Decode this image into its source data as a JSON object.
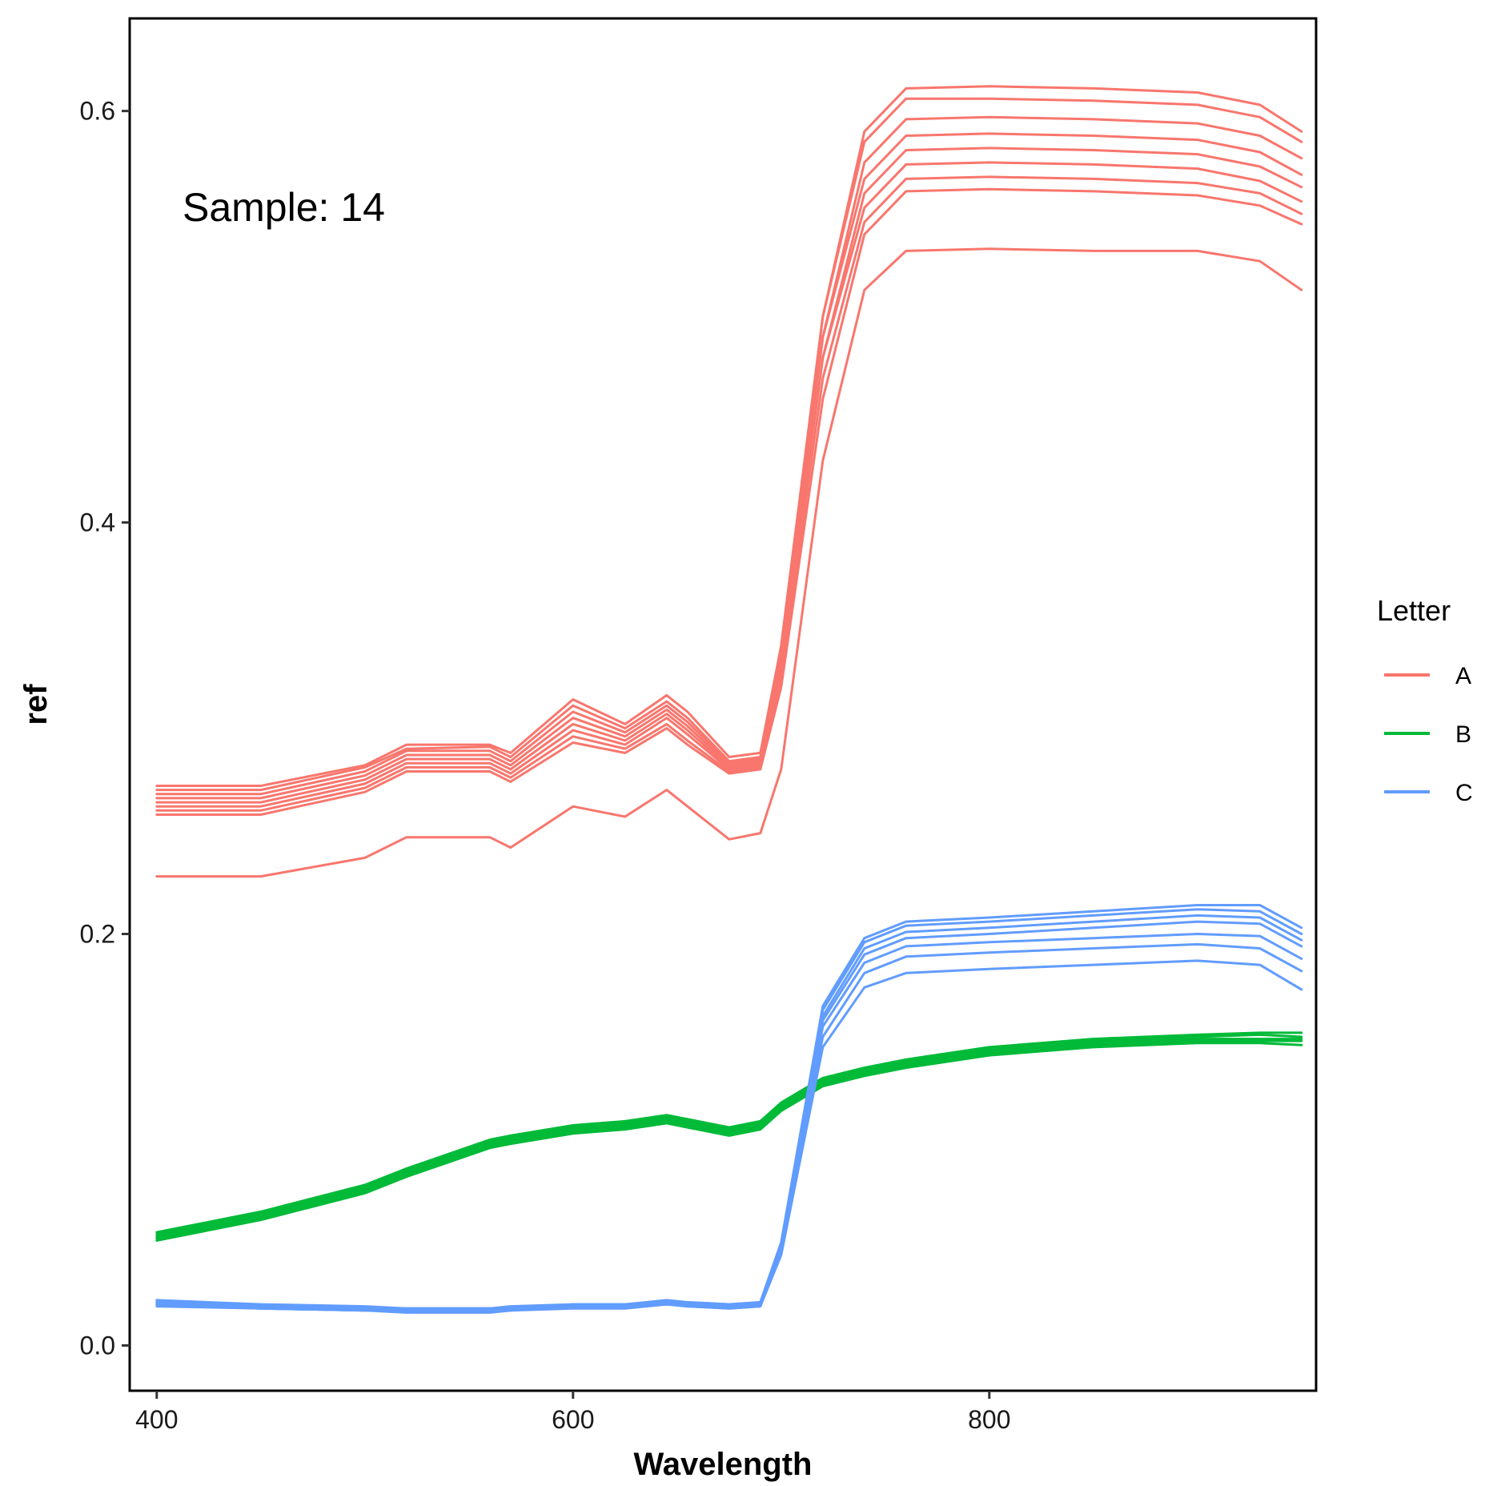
{
  "chart_data": {
    "type": "line",
    "xlabel": "Wavelength",
    "ylabel": "ref",
    "annotation": "Sample: 14",
    "xlim": [
      387,
      957
    ],
    "ylim": [
      -0.022,
      0.645
    ],
    "x_ticks": [
      400,
      600,
      800
    ],
    "x_tick_labels": [
      "400",
      "600",
      "800"
    ],
    "y_ticks": [
      0.0,
      0.2,
      0.4,
      0.6
    ],
    "y_tick_labels": [
      "0.0",
      "0.2",
      "0.4",
      "0.6"
    ],
    "grid": false,
    "legend": {
      "title": "Letter",
      "position": "right",
      "entries": [
        {
          "label": "A",
          "color": "#F8766D"
        },
        {
          "label": "B",
          "color": "#00BA38"
        },
        {
          "label": "C",
          "color": "#619CFF"
        }
      ]
    },
    "x": [
      400,
      450,
      500,
      520,
      560,
      570,
      600,
      625,
      645,
      655,
      675,
      690,
      700,
      720,
      740,
      760,
      800,
      850,
      900,
      930,
      950
    ],
    "series": [
      {
        "name": "A",
        "group": "A",
        "values": [
          0.272,
          0.272,
          0.282,
          0.292,
          0.292,
          0.288,
          0.314,
          0.302,
          0.316,
          0.308,
          0.286,
          0.288,
          0.34,
          0.5,
          0.59,
          0.611,
          0.612,
          0.611,
          0.609,
          0.603,
          0.59
        ]
      },
      {
        "name": "A",
        "group": "A",
        "values": [
          0.27,
          0.27,
          0.281,
          0.29,
          0.291,
          0.286,
          0.311,
          0.3,
          0.313,
          0.305,
          0.284,
          0.286,
          0.34,
          0.5,
          0.585,
          0.606,
          0.606,
          0.605,
          0.603,
          0.597,
          0.585
        ]
      },
      {
        "name": "A",
        "group": "A",
        "values": [
          0.268,
          0.268,
          0.279,
          0.289,
          0.289,
          0.284,
          0.308,
          0.298,
          0.311,
          0.303,
          0.283,
          0.285,
          0.335,
          0.49,
          0.575,
          0.596,
          0.597,
          0.596,
          0.594,
          0.588,
          0.577
        ]
      },
      {
        "name": "A",
        "group": "A",
        "values": [
          0.266,
          0.266,
          0.277,
          0.287,
          0.287,
          0.282,
          0.305,
          0.296,
          0.309,
          0.301,
          0.282,
          0.284,
          0.335,
          0.49,
          0.567,
          0.588,
          0.589,
          0.588,
          0.586,
          0.58,
          0.569
        ]
      },
      {
        "name": "A",
        "group": "A",
        "values": [
          0.264,
          0.264,
          0.275,
          0.285,
          0.285,
          0.28,
          0.302,
          0.294,
          0.307,
          0.299,
          0.281,
          0.283,
          0.33,
          0.48,
          0.56,
          0.581,
          0.582,
          0.581,
          0.579,
          0.573,
          0.563
        ]
      },
      {
        "name": "A",
        "group": "A",
        "values": [
          0.262,
          0.262,
          0.273,
          0.283,
          0.283,
          0.278,
          0.299,
          0.292,
          0.305,
          0.297,
          0.28,
          0.282,
          0.33,
          0.48,
          0.553,
          0.574,
          0.575,
          0.574,
          0.572,
          0.566,
          0.556
        ]
      },
      {
        "name": "A",
        "group": "A",
        "values": [
          0.26,
          0.26,
          0.271,
          0.281,
          0.281,
          0.276,
          0.296,
          0.29,
          0.302,
          0.294,
          0.279,
          0.281,
          0.325,
          0.47,
          0.546,
          0.567,
          0.568,
          0.567,
          0.565,
          0.56,
          0.55
        ]
      },
      {
        "name": "A",
        "group": "A",
        "values": [
          0.258,
          0.258,
          0.269,
          0.279,
          0.279,
          0.274,
          0.293,
          0.288,
          0.3,
          0.292,
          0.278,
          0.28,
          0.32,
          0.46,
          0.54,
          0.561,
          0.562,
          0.561,
          0.559,
          0.554,
          0.545
        ]
      },
      {
        "name": "A",
        "group": "A",
        "values": [
          0.228,
          0.228,
          0.237,
          0.247,
          0.247,
          0.242,
          0.262,
          0.257,
          0.27,
          0.262,
          0.246,
          0.249,
          0.28,
          0.43,
          0.513,
          0.532,
          0.533,
          0.532,
          0.532,
          0.527,
          0.513
        ]
      },
      {
        "name": "B",
        "group": "B",
        "values": [
          0.055,
          0.065,
          0.078,
          0.086,
          0.1,
          0.102,
          0.107,
          0.109,
          0.112,
          0.11,
          0.106,
          0.109,
          0.118,
          0.13,
          0.135,
          0.139,
          0.145,
          0.149,
          0.151,
          0.152,
          0.152
        ]
      },
      {
        "name": "B",
        "group": "B",
        "values": [
          0.054,
          0.064,
          0.077,
          0.085,
          0.099,
          0.101,
          0.106,
          0.108,
          0.111,
          0.109,
          0.105,
          0.108,
          0.117,
          0.129,
          0.134,
          0.138,
          0.144,
          0.148,
          0.15,
          0.151,
          0.15
        ]
      },
      {
        "name": "B",
        "group": "B",
        "values": [
          0.053,
          0.063,
          0.076,
          0.084,
          0.098,
          0.1,
          0.105,
          0.107,
          0.11,
          0.108,
          0.104,
          0.107,
          0.116,
          0.128,
          0.133,
          0.137,
          0.143,
          0.147,
          0.149,
          0.149,
          0.149
        ]
      },
      {
        "name": "B",
        "group": "B",
        "values": [
          0.052,
          0.062,
          0.075,
          0.083,
          0.097,
          0.099,
          0.104,
          0.106,
          0.109,
          0.107,
          0.103,
          0.106,
          0.115,
          0.127,
          0.132,
          0.136,
          0.142,
          0.146,
          0.148,
          0.148,
          0.148
        ]
      },
      {
        "name": "B",
        "group": "B",
        "values": [
          0.051,
          0.061,
          0.074,
          0.082,
          0.096,
          0.098,
          0.103,
          0.105,
          0.108,
          0.106,
          0.102,
          0.105,
          0.114,
          0.126,
          0.131,
          0.135,
          0.141,
          0.145,
          0.147,
          0.147,
          0.146
        ]
      },
      {
        "name": "C",
        "group": "C",
        "values": [
          0.022,
          0.02,
          0.019,
          0.018,
          0.018,
          0.019,
          0.02,
          0.02,
          0.022,
          0.021,
          0.02,
          0.021,
          0.05,
          0.165,
          0.198,
          0.206,
          0.208,
          0.211,
          0.214,
          0.214,
          0.203
        ]
      },
      {
        "name": "C",
        "group": "C",
        "values": [
          0.021,
          0.019,
          0.018,
          0.018,
          0.018,
          0.018,
          0.02,
          0.02,
          0.021,
          0.021,
          0.02,
          0.021,
          0.05,
          0.163,
          0.196,
          0.204,
          0.206,
          0.209,
          0.212,
          0.211,
          0.2
        ]
      },
      {
        "name": "C",
        "group": "C",
        "values": [
          0.021,
          0.019,
          0.018,
          0.018,
          0.018,
          0.018,
          0.019,
          0.02,
          0.021,
          0.02,
          0.019,
          0.02,
          0.048,
          0.16,
          0.193,
          0.201,
          0.203,
          0.206,
          0.209,
          0.208,
          0.197
        ]
      },
      {
        "name": "C",
        "group": "C",
        "values": [
          0.02,
          0.019,
          0.018,
          0.017,
          0.017,
          0.018,
          0.019,
          0.019,
          0.021,
          0.02,
          0.019,
          0.02,
          0.048,
          0.158,
          0.19,
          0.198,
          0.2,
          0.203,
          0.206,
          0.205,
          0.194
        ]
      },
      {
        "name": "C",
        "group": "C",
        "values": [
          0.02,
          0.018,
          0.017,
          0.017,
          0.017,
          0.018,
          0.019,
          0.019,
          0.02,
          0.02,
          0.019,
          0.02,
          0.046,
          0.155,
          0.186,
          0.194,
          0.196,
          0.198,
          0.2,
          0.199,
          0.188
        ]
      },
      {
        "name": "C",
        "group": "C",
        "values": [
          0.02,
          0.018,
          0.017,
          0.017,
          0.017,
          0.017,
          0.019,
          0.019,
          0.02,
          0.019,
          0.018,
          0.019,
          0.045,
          0.15,
          0.181,
          0.189,
          0.191,
          0.193,
          0.195,
          0.193,
          0.182
        ]
      },
      {
        "name": "C",
        "group": "C",
        "values": [
          0.019,
          0.018,
          0.017,
          0.016,
          0.016,
          0.017,
          0.018,
          0.018,
          0.02,
          0.019,
          0.018,
          0.019,
          0.044,
          0.145,
          0.174,
          0.181,
          0.183,
          0.185,
          0.187,
          0.185,
          0.173
        ]
      }
    ]
  }
}
